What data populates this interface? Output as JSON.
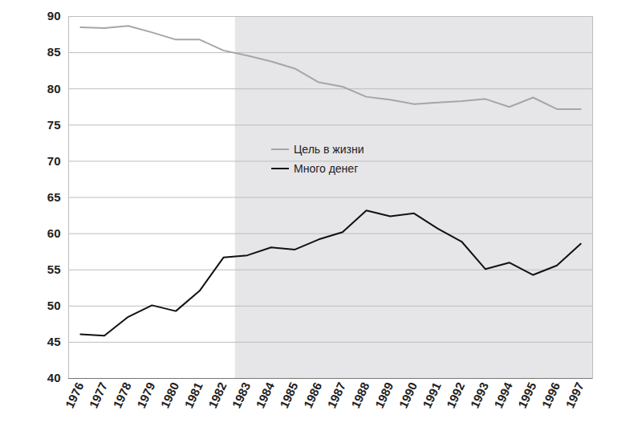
{
  "chart_data": {
    "type": "line",
    "x": [
      1976,
      1977,
      1978,
      1979,
      1980,
      1981,
      1982,
      1983,
      1984,
      1985,
      1986,
      1987,
      1988,
      1989,
      1990,
      1991,
      1992,
      1993,
      1994,
      1995,
      1996,
      1997
    ],
    "series": [
      {
        "name": "Цель в жизни",
        "color": "#a6a6a6",
        "values": [
          88.5,
          88.4,
          88.7,
          87.8,
          86.8,
          86.8,
          85.3,
          84.6,
          83.8,
          82.8,
          80.9,
          80.3,
          78.9,
          78.5,
          77.9,
          78.1,
          78.3,
          78.6,
          77.5,
          78.8,
          77.2,
          77.2
        ]
      },
      {
        "name": "Много денег",
        "color": "#111111",
        "values": [
          46.1,
          45.9,
          48.5,
          50.1,
          49.3,
          52.1,
          56.7,
          57.0,
          58.1,
          57.8,
          59.2,
          60.2,
          63.2,
          62.4,
          62.8,
          60.7,
          58.9,
          55.1,
          56.0,
          54.3,
          55.6,
          58.6
        ]
      }
    ],
    "shaded_x": [
      1982.5,
      1997.5
    ],
    "xlim": [
      1975.5,
      1997.5
    ],
    "xticks": [
      1976,
      1977,
      1978,
      1979,
      1980,
      1981,
      1982,
      1983,
      1984,
      1985,
      1986,
      1987,
      1988,
      1989,
      1990,
      1991,
      1992,
      1993,
      1994,
      1995,
      1996,
      1997
    ],
    "ylim": [
      40,
      90
    ],
    "yticks": [
      40,
      45,
      50,
      55,
      60,
      65,
      70,
      75,
      80,
      85,
      90
    ],
    "grid": true,
    "legend": "center"
  }
}
